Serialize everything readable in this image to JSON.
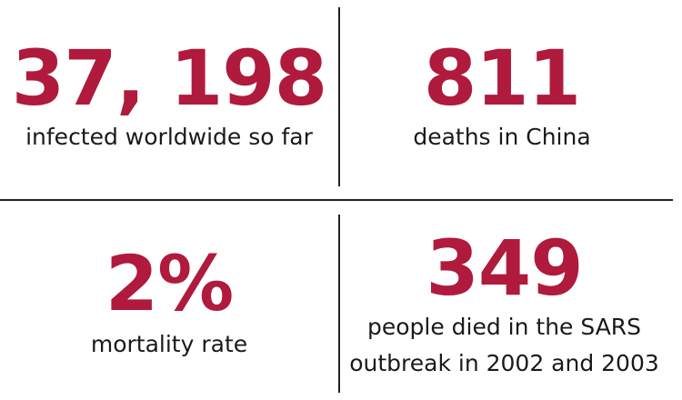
{
  "stats": [
    {
      "value": "37, 198",
      "label": "infected worldwide so far"
    },
    {
      "value": "811",
      "label": "deaths in China"
    },
    {
      "value": "2%",
      "label": "mortality rate"
    },
    {
      "value": "349",
      "label_line1": "people died in the SARS",
      "label_line2": "outbreak in 2002 and 2003"
    }
  ],
  "colors": {
    "accent": "#b01a3c",
    "text": "#1a1a1a",
    "divider": "#222222"
  }
}
